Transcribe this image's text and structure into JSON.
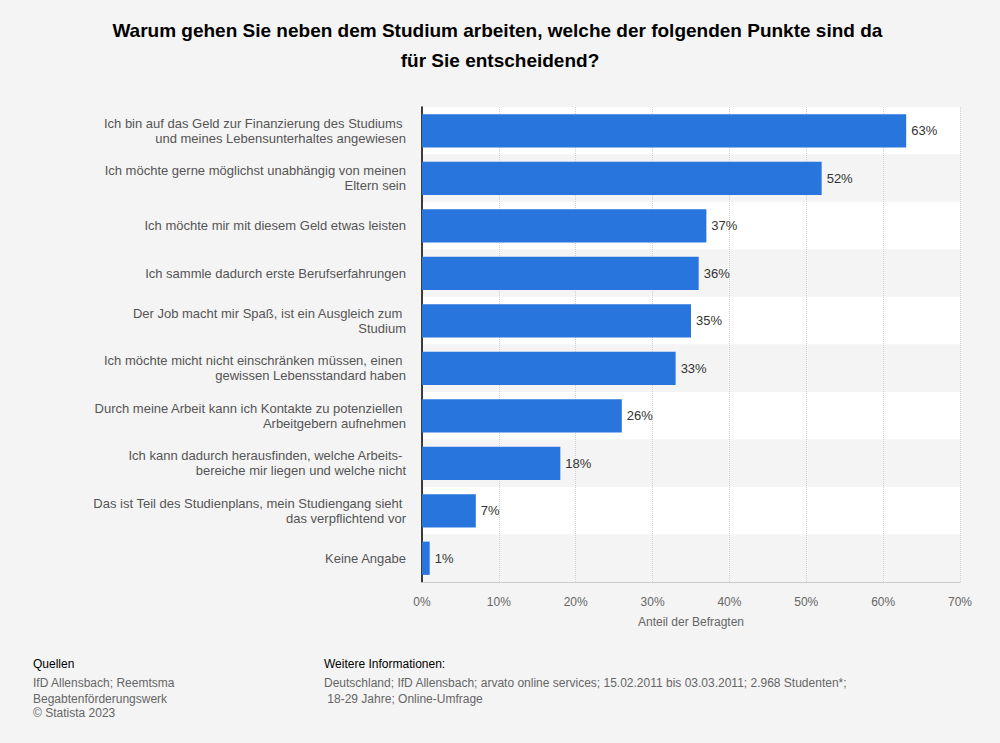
{
  "chart_data": {
    "type": "bar",
    "orientation": "horizontal",
    "title": "Warum gehen Sie neben dem Studium arbeiten, welche der folgenden Punkte sind da für Sie entscheidend?",
    "xlabel": "Anteil der Befragten",
    "categories": [
      "Ich bin auf das Geld zur Finanzierung des Studiums und meines Lebensunterhaltes angewiesen",
      "Ich möchte gerne möglichst unabhängig von meinen Eltern sein",
      "Ich möchte mir mit diesem Geld etwas leisten",
      "Ich sammle dadurch erste Berufserfahrungen",
      "Der Job macht mir Spaß, ist ein Ausgleich zum Studium",
      "Ich möchte micht nicht einschränken müssen, einen gewissen Lebensstandard haben",
      "Durch meine Arbeit kann ich Kontakte zu potenziellen Arbeitgebern aufnehmen",
      "Ich kann dadurch herausfinden, welche Arbeits- bereiche mir liegen und welche nicht",
      "Das ist Teil des Studienplans, mein Studiengang sieht das verpflichtend vor",
      "Keine Angabe"
    ],
    "values": [
      63,
      52,
      37,
      36,
      35,
      33,
      26,
      18,
      7,
      1
    ],
    "value_labels": [
      "63%",
      "52%",
      "37%",
      "36%",
      "35%",
      "33%",
      "26%",
      "18%",
      "7%",
      "1%"
    ],
    "color": "#2876dd",
    "data_labels": true,
    "grid": true,
    "xlim": [
      0,
      70
    ],
    "xticks": [
      {
        "value": 0,
        "label": "0%"
      },
      {
        "value": 10,
        "label": "10%"
      },
      {
        "value": 20,
        "label": "20%"
      },
      {
        "value": 30,
        "label": "30%"
      },
      {
        "value": 40,
        "label": "40%"
      },
      {
        "value": 50,
        "label": "50%"
      },
      {
        "value": 60,
        "label": "60%"
      },
      {
        "value": 70,
        "label": "70%"
      }
    ],
    "footer": {
      "sources_heading": "Quellen",
      "sources": "IfD Allensbach; Reemtsma Begabtenförderungswerk",
      "copyright": "© Statista 2023",
      "info_heading": "Weitere Informationen:",
      "info": "Deutschland; IfD Allensbach; arvato online services; 15.02.2011 bis 03.03.2011; 2.968 Studenten*; 18-29 Jahre; Online-Umfrage"
    }
  }
}
